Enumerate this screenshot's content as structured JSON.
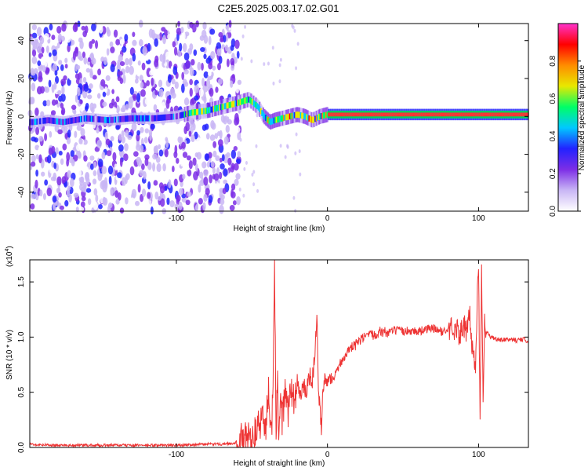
{
  "title": "C2E5.2025.003.17.02.G01",
  "chart_data": [
    {
      "id": "spectrogram",
      "type": "heatmap",
      "xlabel": "Height of straight line (km)",
      "ylabel": "Frequency (Hz)",
      "xlim": [
        -197,
        133
      ],
      "ylim": [
        -50,
        49
      ],
      "xticks": [
        -100,
        0,
        100
      ],
      "xtick_labels": [
        "-100",
        "0",
        "100"
      ],
      "yticks": [
        -40,
        -20,
        0,
        20,
        40
      ],
      "ytick_labels": [
        "-40",
        "-20",
        "0",
        "20",
        "40"
      ],
      "colorbar": {
        "label": "Normalized spectral amplitude",
        "range": [
          0,
          1
        ],
        "ticks": [
          0.0,
          0.2,
          0.4,
          0.6,
          0.8
        ],
        "tick_labels": [
          "0.0",
          "0.2",
          "0.4",
          "0.6",
          "0.8"
        ],
        "colors": [
          "#ffffff",
          "#c9b6f5",
          "#7d2ee6",
          "#2222ff",
          "#00c8ff",
          "#00ff66",
          "#e8e800",
          "#ff8c00",
          "#ff0000",
          "#ff33cc"
        ]
      },
      "ridge": {
        "x": [
          -195,
          -185,
          -175,
          -160,
          -145,
          -130,
          -115,
          -100,
          -90,
          -80,
          -70,
          -60,
          -52,
          -46,
          -42,
          -38,
          -35,
          -30,
          -25,
          -20,
          -15,
          -10,
          -5,
          0,
          20,
          40,
          60,
          80,
          100,
          120,
          133
        ],
        "y": [
          -3,
          -2,
          -3,
          -1,
          -2,
          -1,
          -1,
          0,
          2,
          3,
          5,
          7,
          9,
          5,
          0,
          -3,
          -2,
          -1,
          0,
          1,
          0,
          -2,
          0,
          1,
          1,
          1,
          1,
          1,
          1,
          1,
          1
        ]
      }
    },
    {
      "id": "snr",
      "type": "line",
      "xlabel": "Height of straight line (km)",
      "ylabel": "SNR (10 * v/v)",
      "yscale_label": "(x10",
      "yscale_exponent": "4",
      "xlim": [
        -197,
        133
      ],
      "ylim": [
        0,
        1.7
      ],
      "xticks": [
        -100,
        0,
        100
      ],
      "xtick_labels": [
        "-100",
        "0",
        "100"
      ],
      "yticks": [
        0.0,
        0.5,
        1.0,
        1.5
      ],
      "ytick_labels": [
        "0.0",
        "0.5",
        "1.0",
        "1.5"
      ],
      "line_color": "#ee3333",
      "series": [
        {
          "x": [
            -197,
            -180,
            -160,
            -140,
            -120,
            -100,
            -80,
            -70,
            -62,
            -58,
            -54,
            -50,
            -47,
            -45,
            -43,
            -41,
            -39,
            -37,
            -36,
            -35,
            -34,
            -33,
            -32,
            -31,
            -30,
            -28,
            -26,
            -24,
            -22,
            -20,
            -18,
            -16,
            -14,
            -12,
            -10,
            -9,
            -8,
            -7,
            -6,
            -5,
            -4,
            -3,
            -2,
            -1,
            0,
            2,
            4,
            6,
            8,
            10,
            12,
            14,
            16,
            18,
            20,
            25,
            30,
            35,
            40,
            45,
            50,
            55,
            60,
            65,
            70,
            75,
            80,
            85,
            88,
            90,
            92,
            94,
            96,
            98,
            99,
            100,
            101,
            102,
            103,
            104,
            105,
            108,
            112,
            116,
            120,
            125,
            130,
            133
          ],
          "y": [
            0.03,
            0.02,
            0.02,
            0.02,
            0.02,
            0.02,
            0.03,
            0.03,
            0.04,
            0.06,
            0.08,
            0.1,
            0.14,
            0.2,
            0.3,
            0.15,
            0.5,
            0.1,
            0.7,
            1.66,
            0.2,
            0.55,
            0.05,
            0.45,
            0.25,
            0.5,
            0.3,
            0.55,
            0.4,
            0.6,
            0.45,
            0.55,
            0.5,
            0.65,
            0.6,
            0.75,
            0.9,
            1.25,
            0.45,
            0.35,
            0.15,
            0.5,
            0.6,
            0.55,
            0.6,
            0.62,
            0.65,
            0.7,
            0.75,
            0.8,
            0.85,
            0.87,
            0.9,
            0.92,
            0.95,
            1.0,
            1.02,
            1.05,
            1.04,
            1.06,
            1.05,
            1.06,
            1.05,
            1.07,
            1.08,
            1.05,
            1.06,
            1.1,
            1.0,
            1.15,
            1.0,
            1.2,
            0.9,
            0.7,
            1.3,
            1.65,
            0.25,
            1.66,
            0.4,
            1.2,
            1.05,
            1.0,
            0.98,
            0.97,
            0.98,
            0.97,
            0.98,
            0.96
          ]
        }
      ]
    }
  ]
}
